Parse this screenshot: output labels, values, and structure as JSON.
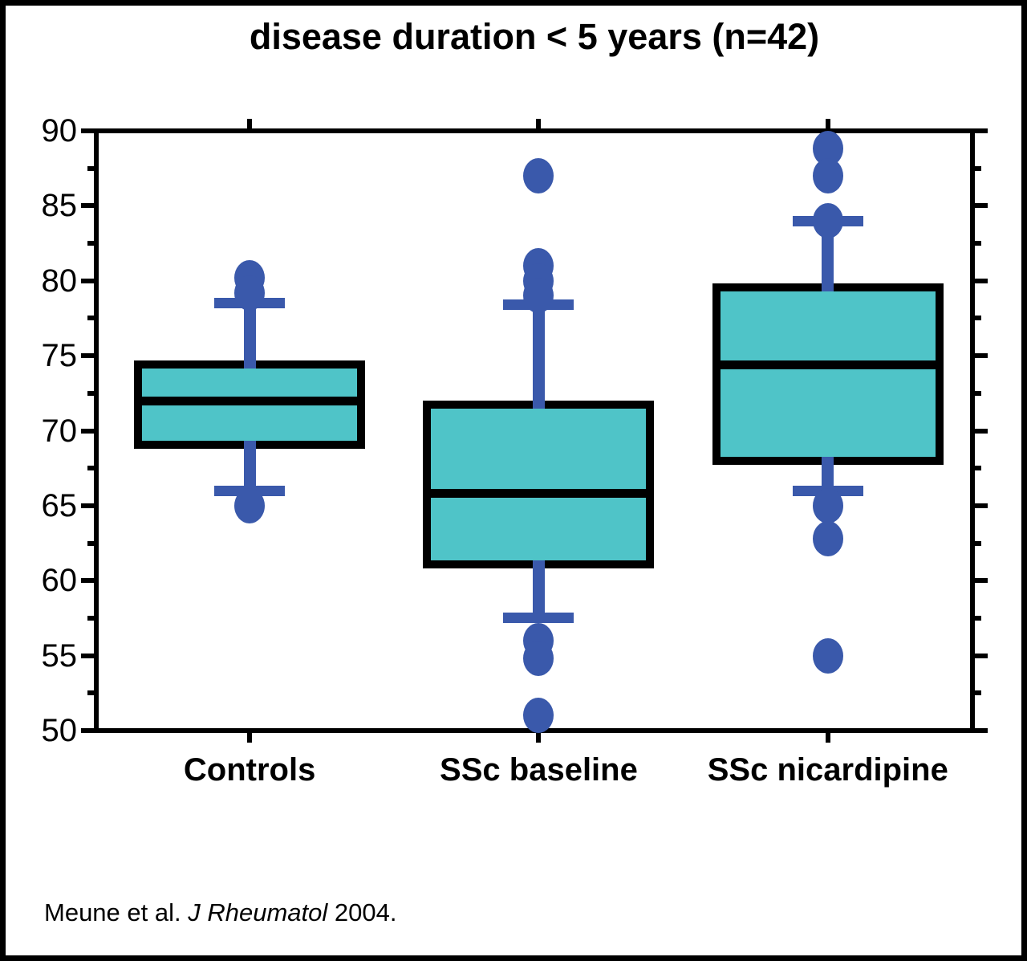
{
  "page": {
    "background": "#ffffff",
    "border_color": "#000000"
  },
  "footer": {
    "prefix": "Meune et al. ",
    "journal": "J Rheumatol",
    "suffix": " 2004."
  },
  "chart_data": {
    "type": "box",
    "title": "disease duration < 5 years (n=42)",
    "xlabel": "",
    "ylabel": "",
    "ylim": [
      50,
      90
    ],
    "yticks_major": [
      50,
      55,
      60,
      65,
      70,
      75,
      80,
      85,
      90
    ],
    "yticks_minor": [
      52.5,
      57.5,
      62.5,
      67.5,
      72.5,
      77.5,
      82.5,
      87.5
    ],
    "grid": false,
    "legend": null,
    "categories": [
      "Controls",
      "SSc baseline",
      "SSc nicardipine"
    ],
    "series": [
      {
        "name": "Controls",
        "q1": 68.8,
        "median": 72.0,
        "q3": 74.7,
        "whisker_low": 66.0,
        "whisker_high": 78.5,
        "outliers_high": [
          80.2,
          79.2
        ],
        "outliers_low": [
          65.0
        ]
      },
      {
        "name": "SSc baseline",
        "q1": 60.8,
        "median": 65.8,
        "q3": 72.0,
        "whisker_low": 57.5,
        "whisker_high": 78.4,
        "outliers_high": [
          87.0,
          81.0,
          80.0,
          79.0
        ],
        "outliers_low": [
          56.0,
          54.8,
          51.0
        ]
      },
      {
        "name": "SSc nicardipine",
        "q1": 67.7,
        "median": 74.4,
        "q3": 79.8,
        "whisker_low": 66.0,
        "whisker_high": 84.0,
        "outliers_high": [
          88.8,
          87.0,
          84.0
        ],
        "outliers_low": [
          65.0,
          62.8,
          55.0
        ]
      }
    ],
    "colors": {
      "box_fill": "#4fc4c8",
      "box_border": "#000000",
      "median": "#000000",
      "whisker": "#3a59ab",
      "outlier": "#3a59ab",
      "axis": "#000000",
      "text": "#000000"
    }
  }
}
